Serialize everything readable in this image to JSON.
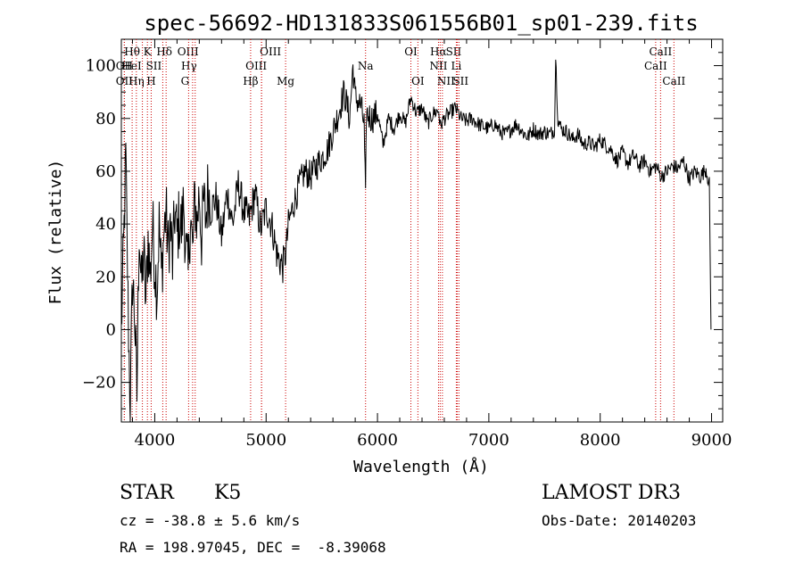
{
  "chart_data": {
    "type": "line",
    "title": "spec-56692-HD131833S061556B01_sp01-239.fits",
    "xlabel": "Wavelength (Å)",
    "ylabel": "Flux (relative)",
    "xlim": [
      3700,
      9100
    ],
    "ylim": [
      -35,
      110
    ],
    "x_ticks": [
      4000,
      5000,
      6000,
      7000,
      8000,
      9000
    ],
    "y_ticks": [
      -20,
      0,
      20,
      40,
      60,
      80,
      100
    ],
    "grid": false,
    "series": [
      {
        "x": [
          3700,
          3720,
          3740,
          3760,
          3780,
          3800,
          3820,
          3840,
          3860,
          3880,
          3900,
          3920,
          3940,
          3960,
          3980,
          4000,
          4020,
          4040,
          4060,
          4080,
          4100,
          4120,
          4140,
          4160,
          4180,
          4200,
          4220,
          4240,
          4260,
          4280,
          4300,
          4320,
          4340,
          4360,
          4380,
          4400,
          4420,
          4440,
          4460,
          4480,
          4500,
          4550,
          4600,
          4650,
          4700,
          4750,
          4800,
          4850,
          4900,
          4950,
          5000,
          5050,
          5100,
          5150,
          5180,
          5200,
          5250,
          5300,
          5350,
          5400,
          5450,
          5500,
          5550,
          5600,
          5650,
          5700,
          5750,
          5780,
          5800,
          5850,
          5880,
          5893,
          5900,
          5950,
          6000,
          6050,
          6100,
          6150,
          6200,
          6250,
          6300,
          6350,
          6400,
          6450,
          6500,
          6550,
          6563,
          6600,
          6650,
          6700,
          6750,
          6800,
          6850,
          6900,
          6950,
          7000,
          7050,
          7100,
          7150,
          7200,
          7250,
          7300,
          7350,
          7400,
          7450,
          7500,
          7550,
          7590,
          7600,
          7620,
          7650,
          7700,
          7750,
          7800,
          7850,
          7900,
          7950,
          8000,
          8050,
          8100,
          8150,
          8200,
          8250,
          8300,
          8350,
          8400,
          8450,
          8500,
          8550,
          8600,
          8650,
          8700,
          8750,
          8800,
          8850,
          8900,
          8950,
          8980,
          8995
        ],
        "y": [
          0,
          30,
          65,
          10,
          -30,
          20,
          5,
          -25,
          40,
          15,
          30,
          10,
          35,
          20,
          40,
          25,
          15,
          40,
          20,
          35,
          45,
          30,
          40,
          25,
          45,
          35,
          42,
          38,
          48,
          30,
          20,
          45,
          28,
          50,
          40,
          52,
          35,
          48,
          42,
          55,
          45,
          50,
          35,
          52,
          40,
          55,
          45,
          42,
          52,
          38,
          46,
          40,
          28,
          24,
          30,
          40,
          48,
          55,
          60,
          58,
          62,
          65,
          68,
          75,
          82,
          90,
          80,
          100,
          88,
          85,
          78,
          48,
          82,
          80,
          82,
          70,
          80,
          76,
          82,
          78,
          88,
          82,
          84,
          78,
          82,
          83,
          77,
          80,
          82,
          84,
          80,
          79,
          80,
          78,
          77,
          76,
          78,
          75,
          74,
          76,
          78,
          75,
          73,
          76,
          74,
          75,
          74,
          76,
          104,
          80,
          76,
          75,
          72,
          74,
          70,
          71,
          69,
          72,
          70,
          68,
          64,
          67,
          63,
          66,
          62,
          64,
          60,
          62,
          58,
          60,
          62,
          61,
          64,
          57,
          60,
          58,
          61,
          55,
          0
        ]
      }
    ],
    "line_markers": [
      {
        "label": "Hθ",
        "x": 3797,
        "row": 1,
        "dx": 0
      },
      {
        "label": "OII",
        "x": 3727,
        "row": 2,
        "dx": 0
      },
      {
        "label": "OII",
        "x": 3727,
        "row": 3,
        "dx": 0
      },
      {
        "label": "HeI",
        "x": 3889,
        "row": 2,
        "dx": -12
      },
      {
        "label": "Hη",
        "x": 3835,
        "row": 3,
        "dx": 0
      },
      {
        "label": "K",
        "x": 3934,
        "row": 1,
        "dx": 0
      },
      {
        "label": "H",
        "x": 3968,
        "row": 3,
        "dx": 0
      },
      {
        "label": "SII",
        "x": 4072,
        "row": 2,
        "dx": -10
      },
      {
        "label": "Hδ",
        "x": 4102,
        "row": 1,
        "dx": -2
      },
      {
        "label": "OIII",
        "x": 4363,
        "row": 1,
        "dx": -8
      },
      {
        "label": "Hγ",
        "x": 4340,
        "row": 2,
        "dx": -4
      },
      {
        "label": "G",
        "x": 4304,
        "row": 3,
        "dx": -4
      },
      {
        "label": "OIII",
        "x": 4959,
        "row": 1,
        "dx": 10
      },
      {
        "label": "OIII",
        "x": 4959,
        "row": 2,
        "dx": -6
      },
      {
        "label": "Hβ",
        "x": 4861,
        "row": 3,
        "dx": 0
      },
      {
        "label": "Mg",
        "x": 5175,
        "row": 3,
        "dx": 0
      },
      {
        "label": "Na",
        "x": 5893,
        "row": 2,
        "dx": 0
      },
      {
        "label": "OI",
        "x": 6300,
        "row": 1,
        "dx": 0
      },
      {
        "label": "OI",
        "x": 6363,
        "row": 3,
        "dx": 0
      },
      {
        "label": "Hα",
        "x": 6563,
        "row": 1,
        "dx": -2
      },
      {
        "label": "SII",
        "x": 6716,
        "row": 1,
        "dx": -4
      },
      {
        "label": "NII",
        "x": 6548,
        "row": 2,
        "dx": 0
      },
      {
        "label": "Li",
        "x": 6708,
        "row": 2,
        "dx": 0
      },
      {
        "label": "NII",
        "x": 6583,
        "row": 3,
        "dx": 4
      },
      {
        "label": "SII",
        "x": 6731,
        "row": 3,
        "dx": 2
      },
      {
        "label": "CaII",
        "x": 8542,
        "row": 1,
        "dx": 0
      },
      {
        "label": "CaII",
        "x": 8498,
        "row": 2,
        "dx": 0
      },
      {
        "label": "CaII",
        "x": 8662,
        "row": 3,
        "dx": 0
      }
    ],
    "marker_color": "#cc0000"
  },
  "info": {
    "object_class": "STAR",
    "subclass": "K5",
    "redshift": "cz = -38.8 ± 5.6 km/s",
    "coords": "RA = 198.97045, DEC =  -8.39068",
    "survey": "LAMOST DR3",
    "obs_date": "Obs-Date: 20140203"
  }
}
